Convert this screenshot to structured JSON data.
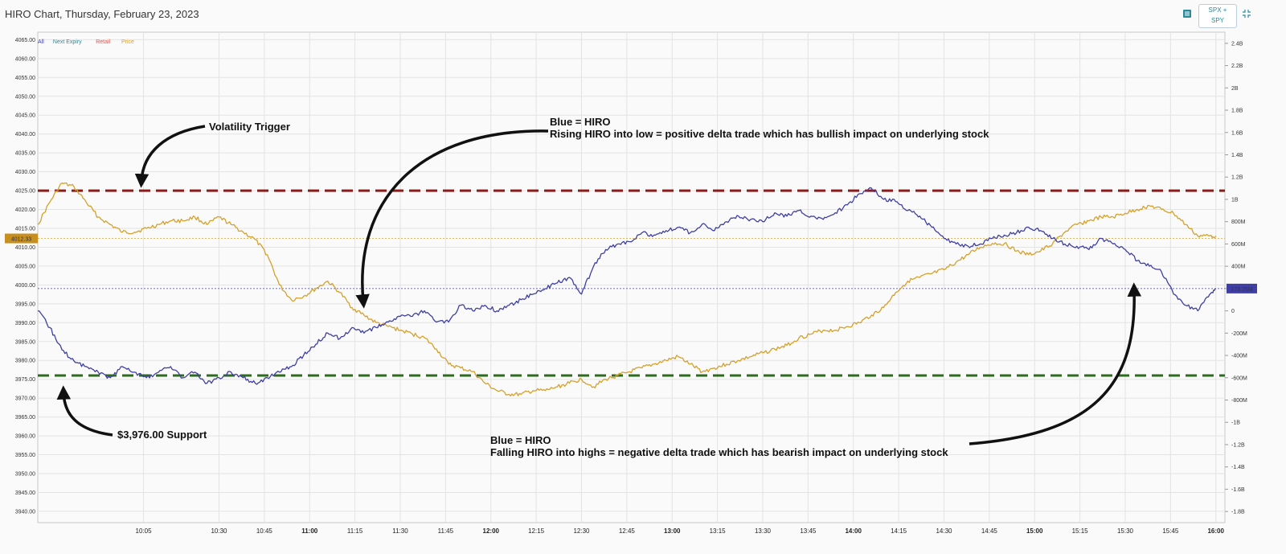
{
  "header": {
    "title": "HIRO Chart, Thursday, February 23, 2023",
    "symbol_button": [
      "SPX +",
      "SPY"
    ],
    "icons": [
      "table-icon",
      "collapse-icon"
    ]
  },
  "legend": [
    {
      "label": "All",
      "color": "#3f3fa3"
    },
    {
      "label": "Next Expiry",
      "color": "#2a8a9a"
    },
    {
      "label": "Retail",
      "color": "#e0554a"
    },
    {
      "label": "Price",
      "color": "#d4a12a"
    }
  ],
  "colors": {
    "hiro": "#3f3fa3",
    "price": "#d4a12a",
    "volatility_trigger": "#8b1c1c",
    "support": "#2f6b1e"
  },
  "chart_data": {
    "type": "line",
    "left_axis": {
      "ticks": [
        "4065.00",
        "4060.00",
        "4055.00",
        "4050.00",
        "4045.00",
        "4040.00",
        "4035.00",
        "4030.00",
        "4025.00",
        "4020.00",
        "4015.00",
        "4010.00",
        "4005.00",
        "4000.00",
        "3995.00",
        "3990.00",
        "3985.00",
        "3980.00",
        "3975.00",
        "3970.00",
        "3965.00",
        "3960.00",
        "3955.00",
        "3950.00",
        "3945.00",
        "3940.00"
      ],
      "range": [
        3937,
        4067
      ]
    },
    "right_axis": {
      "ticks": [
        "2.4B",
        "2.2B",
        "2B",
        "1.8B",
        "1.6B",
        "1.4B",
        "1.2B",
        "1B",
        "800M",
        "600M",
        "400M",
        "200M",
        "0",
        "-200M",
        "-400M",
        "-600M",
        "-800M",
        "-1B",
        "-1.2B",
        "-1.4B",
        "-1.6B",
        "-1.8B"
      ],
      "range": [
        -1.9,
        2.5
      ]
    },
    "x_ticks": [
      {
        "label": "10:05",
        "bold": false
      },
      {
        "label": "10:30",
        "bold": false
      },
      {
        "label": "10:45",
        "bold": false
      },
      {
        "label": "11:00",
        "bold": true
      },
      {
        "label": "11:15",
        "bold": false
      },
      {
        "label": "11:30",
        "bold": false
      },
      {
        "label": "11:45",
        "bold": false
      },
      {
        "label": "12:00",
        "bold": true
      },
      {
        "label": "12:15",
        "bold": false
      },
      {
        "label": "12:30",
        "bold": false
      },
      {
        "label": "12:45",
        "bold": false
      },
      {
        "label": "13:00",
        "bold": true
      },
      {
        "label": "13:15",
        "bold": false
      },
      {
        "label": "13:30",
        "bold": false
      },
      {
        "label": "13:45",
        "bold": false
      },
      {
        "label": "14:00",
        "bold": true
      },
      {
        "label": "14:15",
        "bold": false
      },
      {
        "label": "14:30",
        "bold": false
      },
      {
        "label": "14:45",
        "bold": false
      },
      {
        "label": "15:00",
        "bold": true
      },
      {
        "label": "15:15",
        "bold": false
      },
      {
        "label": "15:30",
        "bold": false
      },
      {
        "label": "15:45",
        "bold": false
      },
      {
        "label": "16:00",
        "bold": true
      }
    ],
    "series": [
      {
        "name": "Price",
        "axis": "left",
        "x": [
          "09:30",
          "09:34",
          "09:38",
          "09:42",
          "09:46",
          "09:50",
          "09:54",
          "09:58",
          "10:02",
          "10:06",
          "10:10",
          "10:14",
          "10:18",
          "10:22",
          "10:26",
          "10:30",
          "10:34",
          "10:38",
          "10:42",
          "10:46",
          "10:50",
          "10:54",
          "10:58",
          "11:02",
          "11:06",
          "11:10",
          "11:14",
          "11:18",
          "11:22",
          "11:26",
          "11:30",
          "11:34",
          "11:38",
          "11:42",
          "11:46",
          "11:50",
          "11:54",
          "11:58",
          "12:02",
          "12:06",
          "12:10",
          "12:14",
          "12:18",
          "12:22",
          "12:26",
          "12:30",
          "12:34",
          "12:38",
          "12:42",
          "12:46",
          "12:50",
          "12:54",
          "12:58",
          "13:02",
          "13:06",
          "13:10",
          "13:14",
          "13:18",
          "13:22",
          "13:26",
          "13:30",
          "13:34",
          "13:38",
          "13:42",
          "13:46",
          "13:50",
          "13:54",
          "13:58",
          "14:02",
          "14:06",
          "14:10",
          "14:14",
          "14:18",
          "14:22",
          "14:26",
          "14:30",
          "14:34",
          "14:38",
          "14:42",
          "14:46",
          "14:50",
          "14:54",
          "14:58",
          "15:02",
          "15:06",
          "15:10",
          "15:14",
          "15:18",
          "15:22",
          "15:26",
          "15:30",
          "15:34",
          "15:38",
          "15:42",
          "15:46",
          "15:50",
          "15:54",
          "15:58",
          "16:00"
        ],
        "values": [
          4016,
          4022,
          4027,
          4026,
          4022,
          4018,
          4016,
          4014,
          4014,
          4015,
          4016,
          4017,
          4017,
          4018,
          4016,
          4018,
          4016,
          4014,
          4012,
          4008,
          4000,
          3996,
          3997,
          3999,
          4001,
          3998,
          3994,
          3992,
          3990,
          3989,
          3988,
          3987,
          3986,
          3983,
          3979,
          3978,
          3977,
          3974,
          3972,
          3971,
          3971,
          3972,
          3972,
          3973,
          3974,
          3975,
          3973,
          3975,
          3976,
          3977,
          3978,
          3979,
          3980,
          3981,
          3979,
          3977,
          3978,
          3979,
          3980,
          3981,
          3982,
          3983,
          3984,
          3986,
          3987,
          3988,
          3988,
          3989,
          3990,
          3992,
          3994,
          3998,
          4001,
          4002,
          4003,
          4004,
          4006,
          4008,
          4010,
          4011,
          4011,
          4009,
          4008,
          4009,
          4011,
          4014,
          4016,
          4017,
          4018,
          4018,
          4019,
          4020,
          4021,
          4020,
          4019,
          4016,
          4013,
          4013,
          4013
        ]
      },
      {
        "name": "HIRO",
        "axis": "right",
        "x": [
          "09:30",
          "09:34",
          "09:38",
          "09:42",
          "09:46",
          "09:50",
          "09:54",
          "09:58",
          "10:02",
          "10:06",
          "10:10",
          "10:14",
          "10:18",
          "10:22",
          "10:26",
          "10:30",
          "10:34",
          "10:38",
          "10:42",
          "10:46",
          "10:50",
          "10:54",
          "10:58",
          "11:02",
          "11:06",
          "11:10",
          "11:14",
          "11:18",
          "11:22",
          "11:26",
          "11:30",
          "11:34",
          "11:38",
          "11:42",
          "11:46",
          "11:50",
          "11:54",
          "11:58",
          "12:02",
          "12:06",
          "12:10",
          "12:14",
          "12:18",
          "12:22",
          "12:26",
          "12:30",
          "12:34",
          "12:38",
          "12:42",
          "12:46",
          "12:50",
          "12:54",
          "12:58",
          "13:02",
          "13:06",
          "13:10",
          "13:14",
          "13:18",
          "13:22",
          "13:26",
          "13:30",
          "13:34",
          "13:38",
          "13:42",
          "13:46",
          "13:50",
          "13:54",
          "13:58",
          "14:02",
          "14:06",
          "14:10",
          "14:14",
          "14:18",
          "14:22",
          "14:26",
          "14:30",
          "14:34",
          "14:38",
          "14:42",
          "14:46",
          "14:50",
          "14:54",
          "14:58",
          "15:02",
          "15:06",
          "15:10",
          "15:14",
          "15:18",
          "15:22",
          "15:26",
          "15:30",
          "15:34",
          "15:38",
          "15:42",
          "15:46",
          "15:50",
          "15:54",
          "15:58",
          "16:00"
        ],
        "values": [
          0.0,
          -0.15,
          -0.35,
          -0.45,
          -0.5,
          -0.55,
          -0.6,
          -0.5,
          -0.55,
          -0.6,
          -0.55,
          -0.5,
          -0.6,
          -0.55,
          -0.65,
          -0.6,
          -0.55,
          -0.6,
          -0.65,
          -0.6,
          -0.55,
          -0.5,
          -0.4,
          -0.3,
          -0.2,
          -0.25,
          -0.15,
          -0.2,
          -0.15,
          -0.1,
          -0.05,
          -0.05,
          0.0,
          -0.1,
          -0.1,
          0.05,
          0.0,
          0.05,
          0.0,
          0.05,
          0.1,
          0.15,
          0.2,
          0.25,
          0.3,
          0.15,
          0.4,
          0.55,
          0.6,
          0.62,
          0.7,
          0.68,
          0.72,
          0.75,
          0.7,
          0.78,
          0.72,
          0.8,
          0.85,
          0.82,
          0.8,
          0.88,
          0.85,
          0.9,
          0.85,
          0.82,
          0.88,
          0.95,
          1.05,
          1.1,
          1.0,
          0.98,
          0.9,
          0.85,
          0.75,
          0.65,
          0.6,
          0.58,
          0.6,
          0.65,
          0.68,
          0.7,
          0.75,
          0.72,
          0.65,
          0.6,
          0.58,
          0.55,
          0.65,
          0.6,
          0.55,
          0.45,
          0.4,
          0.35,
          0.15,
          0.05,
          0.0,
          0.15,
          0.2
        ]
      }
    ],
    "reference_lines": [
      {
        "label": "Volatility Trigger",
        "value": 4025.0,
        "axis": "left",
        "style": "dashed"
      },
      {
        "label": "$3,976.00 Support",
        "value": 3976.0,
        "axis": "left",
        "style": "dashed"
      }
    ],
    "current_price_label": "4012.33",
    "current_hiro_label": "173.75M",
    "annotations": [
      {
        "id": "vt",
        "lines": [
          "Volatility Trigger"
        ]
      },
      {
        "id": "support",
        "lines": [
          "$3,976.00 Support"
        ]
      },
      {
        "id": "hiro-low",
        "lines": [
          "Blue = HIRO",
          "Rising HIRO into low = positive delta trade which has bullish impact on underlying stock"
        ]
      },
      {
        "id": "hiro-high",
        "lines": [
          "Blue = HIRO",
          "Falling HIRO into highs = negative delta trade which has bearish impact on underlying stock"
        ]
      }
    ]
  }
}
